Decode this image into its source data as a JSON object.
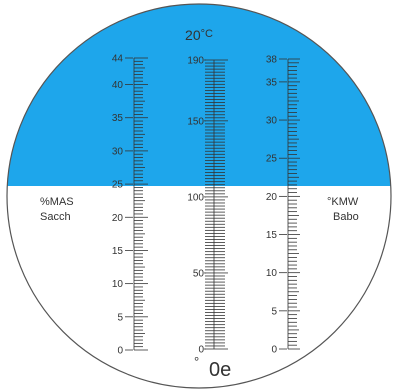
{
  "colors": {
    "sky": "#1ea6eb",
    "field": "#ffffff",
    "ink": "#333333",
    "rim": "#555555"
  },
  "temperature": {
    "value": "20",
    "unit": "°C"
  },
  "boundary_reading": {
    "mas": 25,
    "oe": 103,
    "kmw": 20.5
  },
  "scales": [
    {
      "key": "mas",
      "labels": [
        "0",
        "5",
        "10",
        "15",
        "20",
        "25",
        "30",
        "35",
        "40",
        "44"
      ],
      "range": [
        0,
        44
      ],
      "label_every": 5,
      "minor_step": 0.5
    },
    {
      "key": "oe",
      "labels": [
        "0",
        "50",
        "100",
        "150",
        "190"
      ],
      "range": [
        0,
        190
      ],
      "label_every": 50,
      "minor_step": 2
    },
    {
      "key": "kmw",
      "labels": [
        "0",
        "5",
        "10",
        "15",
        "20",
        "25",
        "30",
        "35",
        "38"
      ],
      "range": [
        0,
        38
      ],
      "label_every": 5,
      "minor_step": 0.5
    }
  ],
  "left_label": {
    "line1": "%MAS",
    "line2": "Sacch"
  },
  "right_label": {
    "line1": "°KMW",
    "line2": "Babo"
  },
  "bottom_label": {
    "degree": "°",
    "unit": "0e"
  }
}
